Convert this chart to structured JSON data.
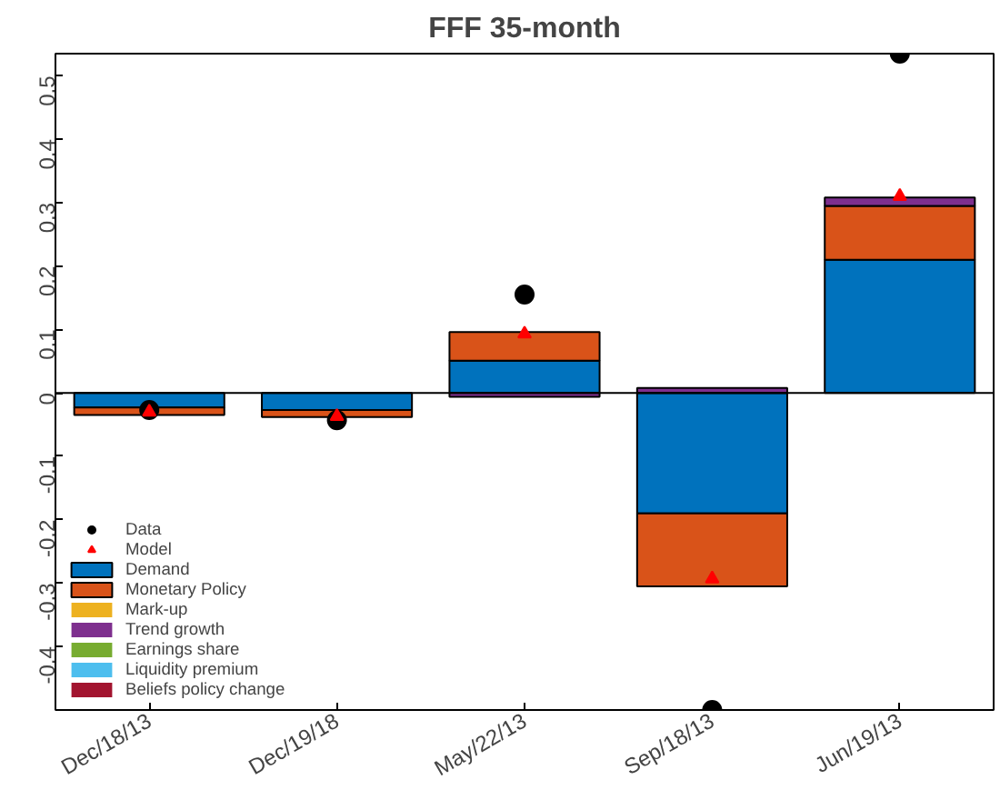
{
  "chart_data": {
    "type": "bar",
    "title": "FFF 35-month",
    "stacked": true,
    "categories": [
      "Dec/18/13",
      "Dec/19/18",
      "May/22/13",
      "Sep/18/13",
      "Jun/19/13"
    ],
    "series": [
      {
        "name": "Data",
        "type": "scatter",
        "marker": "circle",
        "color": "#000000",
        "values": [
          -0.027,
          -0.043,
          0.155,
          -0.5,
          0.535
        ]
      },
      {
        "name": "Model",
        "type": "scatter",
        "marker": "triangle",
        "color": "#ff0000",
        "values": [
          -0.03,
          -0.037,
          0.093,
          -0.293,
          0.31
        ]
      },
      {
        "name": "Demand",
        "color": "#0072bd",
        "values": [
          -0.023,
          -0.027,
          0.051,
          -0.19,
          0.21
        ]
      },
      {
        "name": "Monetary Policy",
        "color": "#d95319",
        "values": [
          -0.012,
          -0.011,
          0.045,
          -0.115,
          0.085
        ]
      },
      {
        "name": "Mark-up",
        "color": "#edb120",
        "values": [
          0,
          0,
          0,
          0,
          0
        ]
      },
      {
        "name": "Trend growth",
        "color": "#7e2f8e",
        "values": [
          0,
          0,
          -0.006,
          0.008,
          0.013
        ]
      },
      {
        "name": "Earnings share",
        "color": "#77ac30",
        "values": [
          0,
          0,
          0,
          0,
          0
        ]
      },
      {
        "name": "Liquidity premium",
        "color": "#4dbeee",
        "values": [
          0,
          0,
          0,
          0,
          0
        ]
      },
      {
        "name": "Beliefs policy change",
        "color": "#a2142f",
        "values": [
          0,
          0,
          0,
          0,
          0
        ]
      }
    ],
    "ylim": [
      -0.5,
      0.535
    ],
    "yticks": [
      -0.4,
      -0.3,
      -0.2,
      -0.1,
      0,
      0.1,
      0.2,
      0.3,
      0.4,
      0.5
    ],
    "ref_lines": [
      {
        "axis": "y",
        "value": 0,
        "color": "#000000"
      }
    ],
    "grid": false,
    "legend": "bottom left"
  }
}
